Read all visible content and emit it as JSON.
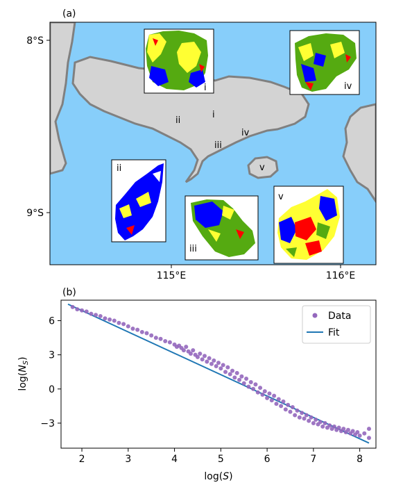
{
  "panel_a": {
    "label": "(a)",
    "lat_ticks": [
      "8°S",
      "9°S"
    ],
    "lon_ticks": [
      "115°E",
      "116°E"
    ],
    "region_labels": [
      "i",
      "ii",
      "iii",
      "iv",
      "v"
    ],
    "inset_labels": [
      "i",
      "ii",
      "iii",
      "iv",
      "v"
    ],
    "colors": {
      "sea": "#87cefa",
      "land": "#d3d3d3",
      "coast": "#808080",
      "green": "#55aa11",
      "yellow": "#ffff33",
      "blue": "#0000ff",
      "red": "#ff0000"
    }
  },
  "chart_data": [
    {
      "type": "scatter",
      "title": "(b)",
      "xlabel": "log(S)",
      "ylabel": "log(N_S)",
      "xlim": [
        1.55,
        8.35
      ],
      "ylim": [
        -5.2,
        7.8
      ],
      "xticks": [
        2,
        3,
        4,
        5,
        6,
        7,
        8
      ],
      "yticks": [
        6,
        3,
        0,
        -3
      ],
      "ytick_labels": [
        "6",
        "3",
        "0",
        "−3"
      ],
      "legend_position": "top-right",
      "series": [
        {
          "name": "Data",
          "kind": "scatter",
          "color": "#9467bd",
          "points": [
            [
              1.8,
              7.2
            ],
            [
              1.9,
              7.0
            ],
            [
              2.0,
              6.9
            ],
            [
              2.1,
              6.8
            ],
            [
              2.2,
              6.6
            ],
            [
              2.3,
              6.5
            ],
            [
              2.4,
              6.4
            ],
            [
              2.5,
              6.2
            ],
            [
              2.6,
              6.1
            ],
            [
              2.7,
              6.0
            ],
            [
              2.8,
              5.8
            ],
            [
              2.9,
              5.7
            ],
            [
              3.0,
              5.5
            ],
            [
              3.1,
              5.3
            ],
            [
              3.2,
              5.2
            ],
            [
              3.3,
              5.0
            ],
            [
              3.4,
              4.9
            ],
            [
              3.5,
              4.7
            ],
            [
              3.6,
              4.5
            ],
            [
              3.7,
              4.4
            ],
            [
              3.8,
              4.2
            ],
            [
              3.9,
              4.1
            ],
            [
              4.0,
              3.9
            ],
            [
              4.05,
              3.7
            ],
            [
              4.1,
              3.8
            ],
            [
              4.15,
              3.6
            ],
            [
              4.2,
              3.4
            ],
            [
              4.25,
              3.7
            ],
            [
              4.3,
              3.3
            ],
            [
              4.35,
              3.1
            ],
            [
              4.4,
              3.4
            ],
            [
              4.45,
              3.0
            ],
            [
              4.5,
              2.8
            ],
            [
              4.55,
              3.1
            ],
            [
              4.6,
              2.6
            ],
            [
              4.65,
              2.9
            ],
            [
              4.7,
              2.4
            ],
            [
              4.75,
              2.7
            ],
            [
              4.8,
              2.2
            ],
            [
              4.85,
              2.5
            ],
            [
              4.9,
              2.0
            ],
            [
              4.95,
              2.3
            ],
            [
              5.0,
              1.8
            ],
            [
              5.05,
              2.1
            ],
            [
              5.1,
              1.5
            ],
            [
              5.15,
              1.9
            ],
            [
              5.2,
              1.3
            ],
            [
              5.25,
              1.6
            ],
            [
              5.3,
              1.0
            ],
            [
              5.35,
              1.4
            ],
            [
              5.4,
              0.8
            ],
            [
              5.45,
              1.1
            ],
            [
              5.5,
              0.5
            ],
            [
              5.55,
              0.9
            ],
            [
              5.6,
              0.2
            ],
            [
              5.65,
              0.6
            ],
            [
              5.7,
              0.0
            ],
            [
              5.75,
              0.4
            ],
            [
              5.8,
              -0.3
            ],
            [
              5.85,
              0.1
            ],
            [
              5.9,
              -0.5
            ],
            [
              5.95,
              -0.2
            ],
            [
              6.0,
              -0.8
            ],
            [
              6.05,
              -0.4
            ],
            [
              6.1,
              -1.0
            ],
            [
              6.15,
              -0.6
            ],
            [
              6.2,
              -1.3
            ],
            [
              6.25,
              -0.9
            ],
            [
              6.3,
              -1.5
            ],
            [
              6.35,
              -1.1
            ],
            [
              6.4,
              -1.8
            ],
            [
              6.45,
              -1.4
            ],
            [
              6.5,
              -2.0
            ],
            [
              6.55,
              -1.6
            ],
            [
              6.6,
              -2.3
            ],
            [
              6.65,
              -1.9
            ],
            [
              6.7,
              -2.5
            ],
            [
              6.75,
              -2.1
            ],
            [
              6.8,
              -2.6
            ],
            [
              6.85,
              -2.3
            ],
            [
              6.9,
              -2.8
            ],
            [
              6.95,
              -2.5
            ],
            [
              7.0,
              -3.0
            ],
            [
              7.05,
              -2.7
            ],
            [
              7.1,
              -3.1
            ],
            [
              7.15,
              -2.9
            ],
            [
              7.2,
              -3.3
            ],
            [
              7.25,
              -3.0
            ],
            [
              7.3,
              -3.4
            ],
            [
              7.35,
              -3.2
            ],
            [
              7.4,
              -3.5
            ],
            [
              7.45,
              -3.3
            ],
            [
              7.5,
              -3.6
            ],
            [
              7.55,
              -3.4
            ],
            [
              7.6,
              -3.7
            ],
            [
              7.65,
              -3.5
            ],
            [
              7.7,
              -3.8
            ],
            [
              7.75,
              -3.6
            ],
            [
              7.8,
              -3.9
            ],
            [
              7.85,
              -3.7
            ],
            [
              7.9,
              -4.0
            ],
            [
              7.95,
              -3.8
            ],
            [
              8.0,
              -4.1
            ],
            [
              8.1,
              -3.9
            ],
            [
              8.2,
              -4.3
            ],
            [
              8.2,
              -3.5
            ]
          ]
        },
        {
          "name": "Fit",
          "kind": "line",
          "color": "#1f77b4",
          "points": [
            [
              1.7,
              7.45
            ],
            [
              8.2,
              -4.75
            ]
          ]
        }
      ]
    }
  ]
}
